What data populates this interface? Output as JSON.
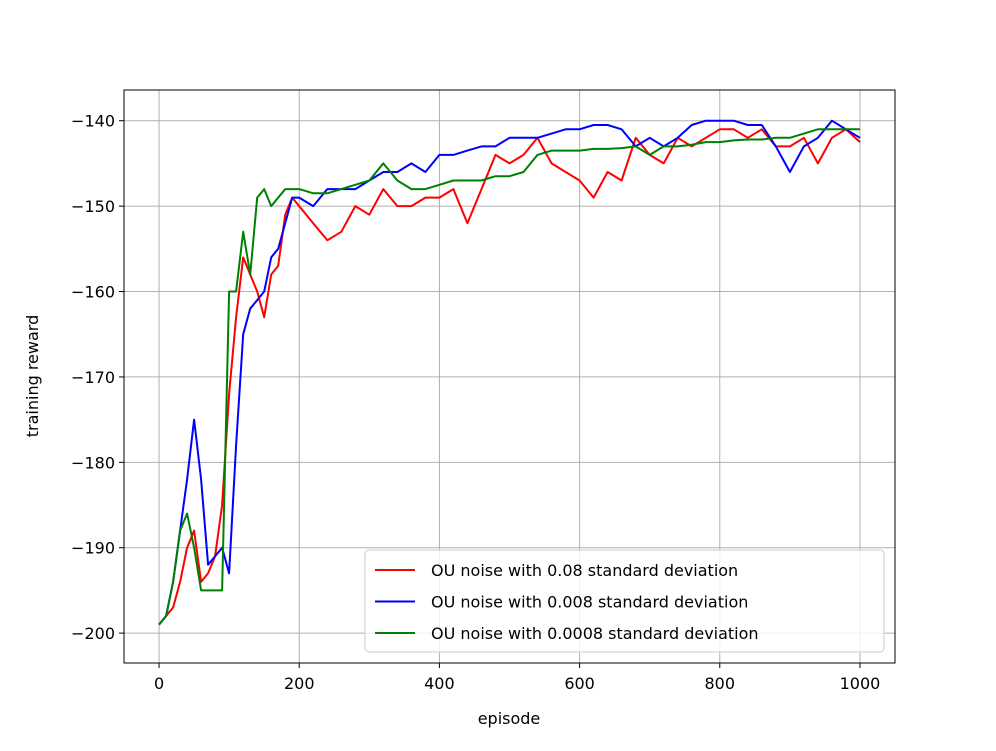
{
  "chart_data": {
    "type": "line",
    "xlabel": "episode",
    "ylabel": "training reward",
    "x": [
      0,
      10,
      20,
      30,
      40,
      50,
      60,
      70,
      80,
      90,
      100,
      110,
      120,
      130,
      140,
      150,
      160,
      170,
      180,
      190,
      200,
      220,
      240,
      260,
      280,
      300,
      320,
      340,
      360,
      380,
      400,
      420,
      440,
      460,
      480,
      500,
      520,
      540,
      560,
      580,
      600,
      620,
      640,
      660,
      680,
      700,
      720,
      740,
      760,
      780,
      800,
      820,
      840,
      860,
      880,
      900,
      920,
      940,
      960,
      980,
      1000
    ],
    "series": [
      {
        "name": "OU noise with 0.08 standard deviation",
        "color": "#ff0000",
        "values": [
          -199,
          -198,
          -197,
          -194,
          -190,
          -188,
          -194,
          -193,
          -191,
          -185,
          -172,
          -163,
          -156,
          -158,
          -160,
          -163,
          -158,
          -157,
          -151,
          -149,
          -150,
          -152,
          -154,
          -153,
          -150,
          -151,
          -148,
          -150,
          -150,
          -149,
          -149,
          -148,
          -152,
          -148,
          -144,
          -145,
          -144,
          -142,
          -145,
          -146,
          -147,
          -149,
          -146,
          -147,
          -142,
          -144,
          -145,
          -142,
          -143,
          -142,
          -141,
          -141,
          -142,
          -141,
          -143,
          -143,
          -142,
          -145,
          -142,
          -141,
          -142.5
        ]
      },
      {
        "name": "OU noise with 0.008 standard deviation",
        "color": "#0000ff",
        "values": [
          -199,
          -198,
          -194,
          -188,
          -182,
          -175,
          -182,
          -192,
          -191,
          -190,
          -193,
          -178,
          -165,
          -162,
          -161,
          -160,
          -156,
          -155,
          -152,
          -149,
          -149,
          -150,
          -148,
          -148,
          -148,
          -147,
          -146,
          -146,
          -145,
          -146,
          -144,
          -144,
          -143.5,
          -143,
          -143,
          -142,
          -142,
          -142,
          -141.5,
          -141,
          -141,
          -140.5,
          -140.5,
          -141,
          -143,
          -142,
          -143,
          -142,
          -140.5,
          -140,
          -140,
          -140,
          -140.5,
          -140.5,
          -143,
          -146,
          -143,
          -142,
          -140,
          -141,
          -142
        ]
      },
      {
        "name": "OU noise with 0.0008 standard deviation",
        "color": "#008000",
        "values": [
          -199,
          -198,
          -194,
          -188,
          -186,
          -190,
          -195,
          -195,
          -195,
          -195,
          -160,
          -160,
          -153,
          -158,
          -149,
          -148,
          -150,
          -149,
          -148,
          -148,
          -148,
          -148.5,
          -148.5,
          -148,
          -147.5,
          -147,
          -145,
          -147,
          -148,
          -148,
          -147.5,
          -147,
          -147,
          -147,
          -146.5,
          -146.5,
          -146,
          -144,
          -143.5,
          -143.5,
          -143.5,
          -143.3,
          -143.3,
          -143.2,
          -143,
          -144,
          -143,
          -143,
          -142.8,
          -142.5,
          -142.5,
          -142.3,
          -142.2,
          -142.2,
          -142,
          -142,
          -141.5,
          -141,
          -141,
          -141,
          -141
        ]
      }
    ],
    "xlim": [
      -50,
      1050
    ],
    "ylim": [
      -203.5,
      -136.4
    ],
    "xticks": [
      0,
      200,
      400,
      600,
      800,
      1000
    ],
    "yticks": [
      {
        "value": -200,
        "label": "−200"
      },
      {
        "value": -190,
        "label": "−190"
      },
      {
        "value": -180,
        "label": "−180"
      },
      {
        "value": -170,
        "label": "−170"
      },
      {
        "value": -160,
        "label": "−160"
      },
      {
        "value": -150,
        "label": "−150"
      },
      {
        "value": -140,
        "label": "−140"
      }
    ],
    "grid": true,
    "legend": "lower right"
  }
}
